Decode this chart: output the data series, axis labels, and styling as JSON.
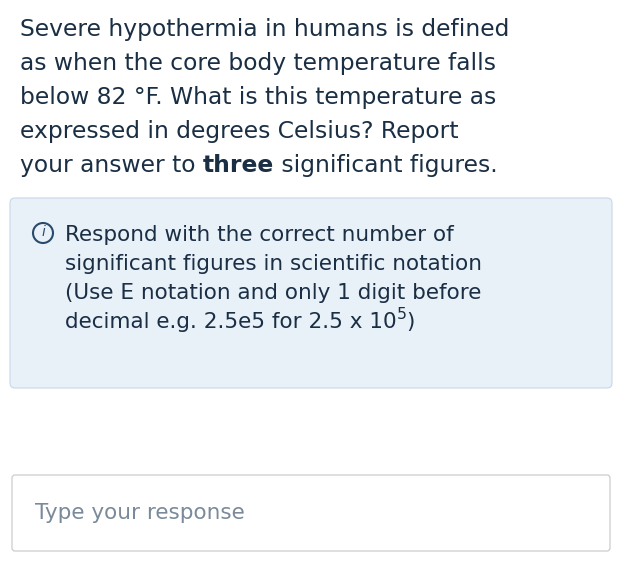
{
  "background_color": "#ffffff",
  "main_text_lines": [
    "Severe hypothermia in humans is defined",
    "as when the core body temperature falls",
    "below 82 °F. What is this temperature as",
    "expressed in degrees Celsius? Report",
    "your answer to {bold}three{/bold} significant figures."
  ],
  "info_box_bg": "#e8f0f8",
  "info_box_border": "#c8d8e8",
  "info_icon_color": "#2a4a6c",
  "info_lines": [
    "Respond with the correct number of",
    "significant figures in scientific notation",
    "(Use E notation and only 1 digit before",
    "decimal e.g. 2.5e5 for 2.5 x 10⁵)"
  ],
  "response_box_bg": "#ffffff",
  "response_box_border": "#cccccc",
  "response_placeholder": "Type your response",
  "text_color": "#1a2e44",
  "placeholder_color": "#7a8a9a",
  "main_fontsize": 16.8,
  "info_fontsize": 15.5,
  "placeholder_fontsize": 15.5,
  "fig_w": 6.22,
  "fig_h": 5.78,
  "dpi": 100
}
